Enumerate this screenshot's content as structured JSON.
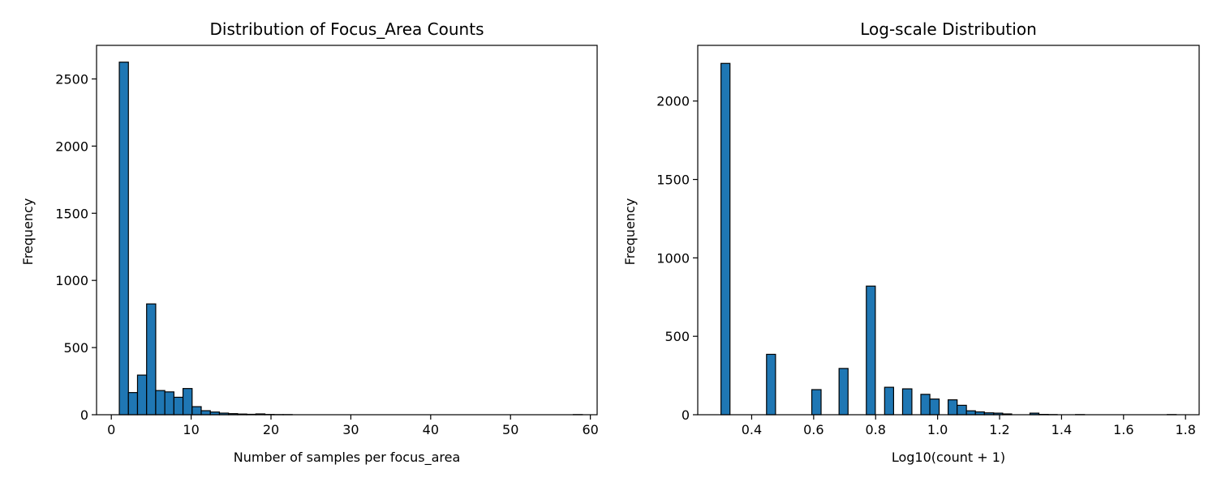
{
  "chart_data": [
    {
      "type": "bar",
      "title": "Distribution of Focus_Area Counts",
      "xlabel": "Number of samples per focus_area",
      "ylabel": "Frequency",
      "xlim": [
        -1.85,
        60.85
      ],
      "ylim": [
        0,
        2750
      ],
      "xticks": [
        0,
        10,
        20,
        30,
        40,
        50,
        60
      ],
      "yticks": [
        0,
        500,
        1000,
        1500,
        2000,
        2500
      ],
      "bins": [
        {
          "x0": 1.0,
          "x1": 2.14,
          "value": 2625
        },
        {
          "x0": 2.14,
          "x1": 3.28,
          "value": 165
        },
        {
          "x0": 3.28,
          "x1": 4.42,
          "value": 295
        },
        {
          "x0": 4.42,
          "x1": 5.56,
          "value": 825
        },
        {
          "x0": 5.56,
          "x1": 6.7,
          "value": 180
        },
        {
          "x0": 6.7,
          "x1": 7.84,
          "value": 170
        },
        {
          "x0": 7.84,
          "x1": 8.98,
          "value": 130
        },
        {
          "x0": 8.98,
          "x1": 10.12,
          "value": 195
        },
        {
          "x0": 10.12,
          "x1": 11.26,
          "value": 60
        },
        {
          "x0": 11.26,
          "x1": 12.4,
          "value": 30
        },
        {
          "x0": 12.4,
          "x1": 13.54,
          "value": 20
        },
        {
          "x0": 13.54,
          "x1": 14.68,
          "value": 12
        },
        {
          "x0": 14.68,
          "x1": 15.82,
          "value": 8
        },
        {
          "x0": 15.82,
          "x1": 16.96,
          "value": 5
        },
        {
          "x0": 16.96,
          "x1": 18.1,
          "value": 3
        },
        {
          "x0": 18.1,
          "x1": 19.24,
          "value": 6
        },
        {
          "x0": 19.24,
          "x1": 20.38,
          "value": 2
        },
        {
          "x0": 20.38,
          "x1": 21.52,
          "value": 1
        },
        {
          "x0": 21.52,
          "x1": 22.66,
          "value": 1
        },
        {
          "x0": 57.86,
          "x1": 59.0,
          "value": 1
        }
      ]
    },
    {
      "type": "bar",
      "title": "Log-scale Distribution",
      "xlabel": "Log10(count + 1)",
      "ylabel": "Frequency",
      "xlim": [
        0.226,
        1.844
      ],
      "ylim": [
        0,
        2355
      ],
      "xticks": [
        0.4,
        0.6,
        0.8,
        1.0,
        1.2,
        1.4,
        1.6,
        1.8
      ],
      "xtick_labels": [
        "0.4",
        "0.6",
        "0.8",
        "1.0",
        "1.2",
        "1.4",
        "1.6",
        "1.8"
      ],
      "yticks": [
        0,
        500,
        1000,
        1500,
        2000
      ],
      "bins": [
        {
          "x0": 0.301,
          "x1": 0.33,
          "value": 2240
        },
        {
          "x0": 0.448,
          "x1": 0.477,
          "value": 385
        },
        {
          "x0": 0.594,
          "x1": 0.624,
          "value": 160
        },
        {
          "x0": 0.682,
          "x1": 0.711,
          "value": 295
        },
        {
          "x0": 0.77,
          "x1": 0.799,
          "value": 820
        },
        {
          "x0": 0.829,
          "x1": 0.858,
          "value": 175
        },
        {
          "x0": 0.887,
          "x1": 0.917,
          "value": 165
        },
        {
          "x0": 0.946,
          "x1": 0.975,
          "value": 130
        },
        {
          "x0": 0.975,
          "x1": 1.005,
          "value": 100
        },
        {
          "x0": 1.034,
          "x1": 1.063,
          "value": 95
        },
        {
          "x0": 1.063,
          "x1": 1.093,
          "value": 60
        },
        {
          "x0": 1.093,
          "x1": 1.122,
          "value": 25
        },
        {
          "x0": 1.122,
          "x1": 1.151,
          "value": 18
        },
        {
          "x0": 1.151,
          "x1": 1.181,
          "value": 12
        },
        {
          "x0": 1.181,
          "x1": 1.21,
          "value": 10
        },
        {
          "x0": 1.21,
          "x1": 1.239,
          "value": 5
        },
        {
          "x0": 1.298,
          "x1": 1.327,
          "value": 10
        },
        {
          "x0": 1.327,
          "x1": 1.357,
          "value": 2
        },
        {
          "x0": 1.357,
          "x1": 1.386,
          "value": 1
        },
        {
          "x0": 1.445,
          "x1": 1.474,
          "value": 1
        },
        {
          "x0": 1.741,
          "x1": 1.77,
          "value": 1
        }
      ]
    }
  ]
}
